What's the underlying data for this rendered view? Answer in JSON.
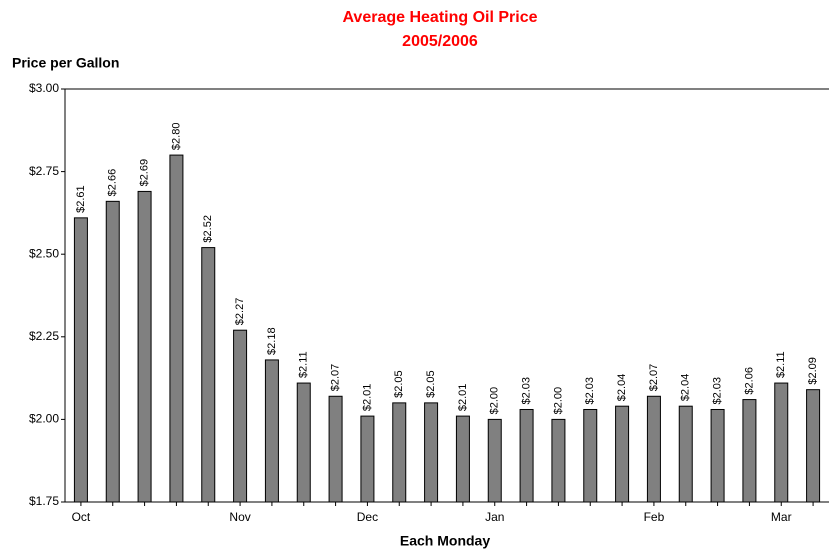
{
  "chart_data": {
    "type": "bar",
    "title": "Average Heating Oil Price",
    "subtitle": "2005/2006",
    "y_label": "Price per Gallon",
    "x_label": "Each Monday",
    "categories": [
      "Oct",
      null,
      null,
      null,
      null,
      "Nov",
      null,
      null,
      null,
      "Dec",
      null,
      null,
      null,
      "Jan",
      null,
      null,
      null,
      null,
      "Feb",
      null,
      null,
      null,
      "Mar",
      null
    ],
    "values": [
      2.61,
      2.66,
      2.69,
      2.8,
      2.52,
      2.27,
      2.18,
      2.11,
      2.07,
      2.01,
      2.05,
      2.05,
      2.01,
      2.0,
      2.03,
      2.0,
      2.03,
      2.04,
      2.07,
      2.04,
      2.03,
      2.06,
      2.11,
      2.09
    ],
    "value_labels": [
      "$2.61",
      "$2.66",
      "$2.69",
      "$2.80",
      "$2.52",
      "$2.27",
      "$2.18",
      "$2.11",
      "$2.07",
      "$2.01",
      "$2.05",
      "$2.05",
      "$2.01",
      "$2.00",
      "$2.03",
      "$2.00",
      "$2.03",
      "$2.04",
      "$2.07",
      "$2.04",
      "$2.03",
      "$2.06",
      "$2.11",
      "$2.09"
    ],
    "color": "#808080",
    "ylim": [
      1.75,
      3.0
    ],
    "yticks": [
      {
        "value": 1.75,
        "label": "$1.75"
      },
      {
        "value": 2.0,
        "label": "$2.00"
      },
      {
        "value": 2.25,
        "label": "$2.25"
      },
      {
        "value": 2.5,
        "label": "$2.50"
      },
      {
        "value": 2.75,
        "label": "$2.75"
      },
      {
        "value": 3.0,
        "label": "$3.00"
      }
    ],
    "grid": false
  }
}
